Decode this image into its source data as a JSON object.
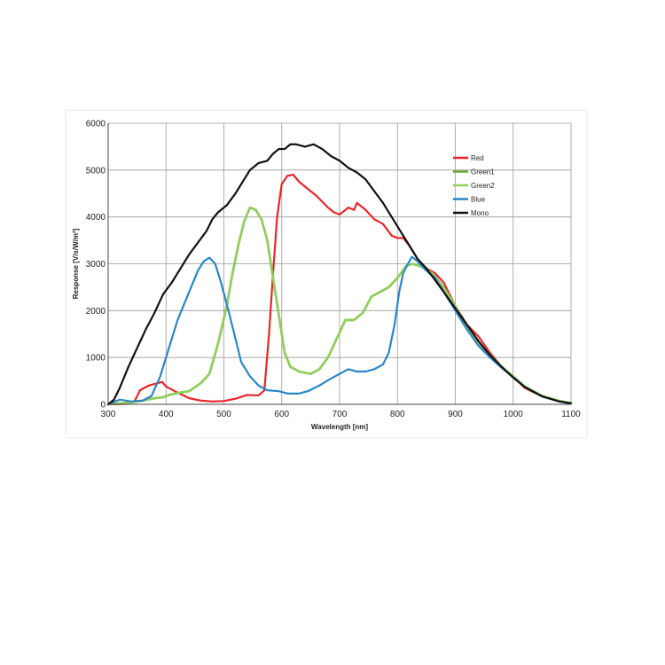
{
  "chart_data": {
    "type": "line",
    "title": "",
    "xlabel": "Wavelength [nm]",
    "ylabel": "Response [V/s/W/m²]",
    "xlim": [
      300,
      1100
    ],
    "ylim": [
      0,
      6000
    ],
    "x_ticks": [
      "300",
      "400",
      "500",
      "600",
      "700",
      "800",
      "900",
      "1000",
      "1100"
    ],
    "y_ticks": [
      "0",
      "1000",
      "2000",
      "3000",
      "4000",
      "5000",
      "6000"
    ],
    "grid": true,
    "legend_position": "top-right",
    "series": [
      {
        "name": "Red",
        "color": "#e8262a",
        "points": [
          [
            300,
            0
          ],
          [
            330,
            10
          ],
          [
            345,
            50
          ],
          [
            355,
            300
          ],
          [
            370,
            400
          ],
          [
            385,
            450
          ],
          [
            393,
            480
          ],
          [
            400,
            380
          ],
          [
            420,
            250
          ],
          [
            440,
            130
          ],
          [
            460,
            80
          ],
          [
            480,
            60
          ],
          [
            500,
            70
          ],
          [
            520,
            120
          ],
          [
            540,
            200
          ],
          [
            560,
            190
          ],
          [
            570,
            300
          ],
          [
            578,
            1500
          ],
          [
            585,
            2800
          ],
          [
            592,
            4000
          ],
          [
            600,
            4700
          ],
          [
            610,
            4880
          ],
          [
            620,
            4900
          ],
          [
            630,
            4750
          ],
          [
            645,
            4600
          ],
          [
            660,
            4450
          ],
          [
            680,
            4200
          ],
          [
            690,
            4100
          ],
          [
            700,
            4050
          ],
          [
            715,
            4200
          ],
          [
            725,
            4150
          ],
          [
            730,
            4300
          ],
          [
            745,
            4150
          ],
          [
            760,
            3950
          ],
          [
            775,
            3850
          ],
          [
            790,
            3600
          ],
          [
            800,
            3550
          ],
          [
            810,
            3550
          ],
          [
            820,
            3400
          ],
          [
            835,
            3100
          ],
          [
            850,
            2900
          ],
          [
            865,
            2800
          ],
          [
            880,
            2600
          ],
          [
            900,
            2100
          ],
          [
            920,
            1700
          ],
          [
            940,
            1450
          ],
          [
            960,
            1100
          ],
          [
            980,
            800
          ],
          [
            1000,
            600
          ],
          [
            1020,
            350
          ],
          [
            1050,
            170
          ],
          [
            1080,
            70
          ],
          [
            1100,
            30
          ]
        ]
      },
      {
        "name": "Green1",
        "color": "#6aa631",
        "points": [
          [
            300,
            0
          ],
          [
            340,
            40
          ],
          [
            360,
            80
          ],
          [
            380,
            130
          ],
          [
            395,
            150
          ],
          [
            405,
            200
          ],
          [
            420,
            240
          ],
          [
            440,
            280
          ],
          [
            460,
            450
          ],
          [
            475,
            650
          ],
          [
            490,
            1300
          ],
          [
            505,
            2100
          ],
          [
            515,
            2800
          ],
          [
            525,
            3400
          ],
          [
            535,
            3900
          ],
          [
            545,
            4200
          ],
          [
            555,
            4150
          ],
          [
            565,
            3950
          ],
          [
            575,
            3500
          ],
          [
            585,
            2700
          ],
          [
            595,
            1900
          ],
          [
            605,
            1100
          ],
          [
            615,
            800
          ],
          [
            630,
            700
          ],
          [
            650,
            650
          ],
          [
            665,
            750
          ],
          [
            680,
            1000
          ],
          [
            695,
            1400
          ],
          [
            710,
            1800
          ],
          [
            725,
            1800
          ],
          [
            740,
            1950
          ],
          [
            755,
            2300
          ],
          [
            770,
            2400
          ],
          [
            785,
            2500
          ],
          [
            800,
            2700
          ],
          [
            815,
            2950
          ],
          [
            825,
            3000
          ],
          [
            840,
            2950
          ],
          [
            860,
            2800
          ],
          [
            880,
            2500
          ],
          [
            900,
            2100
          ],
          [
            920,
            1650
          ],
          [
            940,
            1300
          ],
          [
            960,
            1050
          ],
          [
            980,
            800
          ],
          [
            1000,
            600
          ],
          [
            1020,
            380
          ],
          [
            1050,
            180
          ],
          [
            1080,
            70
          ],
          [
            1100,
            30
          ]
        ]
      },
      {
        "name": "Green2",
        "color": "#92cf5c",
        "points": [
          [
            300,
            0
          ],
          [
            340,
            40
          ],
          [
            360,
            80
          ],
          [
            380,
            130
          ],
          [
            395,
            150
          ],
          [
            405,
            200
          ],
          [
            420,
            240
          ],
          [
            440,
            280
          ],
          [
            460,
            450
          ],
          [
            475,
            650
          ],
          [
            490,
            1300
          ],
          [
            505,
            2100
          ],
          [
            515,
            2800
          ],
          [
            525,
            3400
          ],
          [
            535,
            3900
          ],
          [
            545,
            4200
          ],
          [
            555,
            4150
          ],
          [
            565,
            3950
          ],
          [
            575,
            3500
          ],
          [
            585,
            2700
          ],
          [
            595,
            1900
          ],
          [
            605,
            1100
          ],
          [
            615,
            800
          ],
          [
            630,
            700
          ],
          [
            650,
            650
          ],
          [
            665,
            750
          ],
          [
            680,
            1000
          ],
          [
            695,
            1400
          ],
          [
            710,
            1800
          ],
          [
            725,
            1800
          ],
          [
            740,
            1950
          ],
          [
            755,
            2300
          ],
          [
            770,
            2400
          ],
          [
            785,
            2500
          ],
          [
            800,
            2700
          ],
          [
            815,
            2950
          ],
          [
            825,
            3000
          ],
          [
            840,
            2950
          ],
          [
            860,
            2800
          ],
          [
            880,
            2500
          ],
          [
            900,
            2100
          ],
          [
            920,
            1650
          ],
          [
            940,
            1300
          ],
          [
            960,
            1050
          ],
          [
            980,
            800
          ],
          [
            1000,
            600
          ],
          [
            1020,
            380
          ],
          [
            1050,
            180
          ],
          [
            1080,
            70
          ],
          [
            1100,
            30
          ]
        ]
      },
      {
        "name": "Blue",
        "color": "#2c86c6",
        "points": [
          [
            300,
            0
          ],
          [
            320,
            100
          ],
          [
            340,
            60
          ],
          [
            360,
            80
          ],
          [
            375,
            180
          ],
          [
            390,
            600
          ],
          [
            405,
            1200
          ],
          [
            420,
            1800
          ],
          [
            440,
            2400
          ],
          [
            455,
            2850
          ],
          [
            465,
            3050
          ],
          [
            475,
            3130
          ],
          [
            485,
            3000
          ],
          [
            495,
            2600
          ],
          [
            510,
            1900
          ],
          [
            520,
            1400
          ],
          [
            530,
            900
          ],
          [
            545,
            600
          ],
          [
            560,
            400
          ],
          [
            575,
            300
          ],
          [
            595,
            280
          ],
          [
            610,
            230
          ],
          [
            630,
            230
          ],
          [
            645,
            280
          ],
          [
            665,
            400
          ],
          [
            685,
            550
          ],
          [
            700,
            650
          ],
          [
            715,
            750
          ],
          [
            730,
            700
          ],
          [
            745,
            700
          ],
          [
            760,
            750
          ],
          [
            775,
            850
          ],
          [
            785,
            1100
          ],
          [
            795,
            1700
          ],
          [
            803,
            2400
          ],
          [
            810,
            2800
          ],
          [
            818,
            3000
          ],
          [
            825,
            3150
          ],
          [
            835,
            3050
          ],
          [
            850,
            2850
          ],
          [
            865,
            2700
          ],
          [
            880,
            2400
          ],
          [
            900,
            2000
          ],
          [
            920,
            1600
          ],
          [
            940,
            1250
          ],
          [
            960,
            1000
          ],
          [
            980,
            780
          ],
          [
            1000,
            580
          ],
          [
            1020,
            370
          ],
          [
            1050,
            170
          ],
          [
            1080,
            60
          ],
          [
            1100,
            20
          ]
        ]
      },
      {
        "name": "Mono",
        "color": "#111111",
        "points": [
          [
            300,
            0
          ],
          [
            310,
            100
          ],
          [
            320,
            350
          ],
          [
            335,
            800
          ],
          [
            350,
            1200
          ],
          [
            365,
            1600
          ],
          [
            380,
            1950
          ],
          [
            395,
            2350
          ],
          [
            410,
            2600
          ],
          [
            425,
            2900
          ],
          [
            440,
            3200
          ],
          [
            455,
            3450
          ],
          [
            470,
            3700
          ],
          [
            480,
            3950
          ],
          [
            490,
            4100
          ],
          [
            505,
            4250
          ],
          [
            520,
            4500
          ],
          [
            530,
            4700
          ],
          [
            545,
            5000
          ],
          [
            560,
            5150
          ],
          [
            575,
            5200
          ],
          [
            585,
            5350
          ],
          [
            595,
            5450
          ],
          [
            605,
            5450
          ],
          [
            615,
            5550
          ],
          [
            625,
            5550
          ],
          [
            640,
            5500
          ],
          [
            655,
            5550
          ],
          [
            670,
            5450
          ],
          [
            685,
            5300
          ],
          [
            700,
            5200
          ],
          [
            715,
            5050
          ],
          [
            730,
            4950
          ],
          [
            745,
            4800
          ],
          [
            760,
            4550
          ],
          [
            775,
            4300
          ],
          [
            790,
            4000
          ],
          [
            805,
            3700
          ],
          [
            820,
            3400
          ],
          [
            835,
            3100
          ],
          [
            850,
            2900
          ],
          [
            865,
            2650
          ],
          [
            880,
            2400
          ],
          [
            900,
            2050
          ],
          [
            920,
            1700
          ],
          [
            940,
            1350
          ],
          [
            960,
            1050
          ],
          [
            980,
            800
          ],
          [
            1000,
            570
          ],
          [
            1020,
            370
          ],
          [
            1050,
            170
          ],
          [
            1080,
            60
          ],
          [
            1100,
            20
          ]
        ]
      }
    ]
  }
}
